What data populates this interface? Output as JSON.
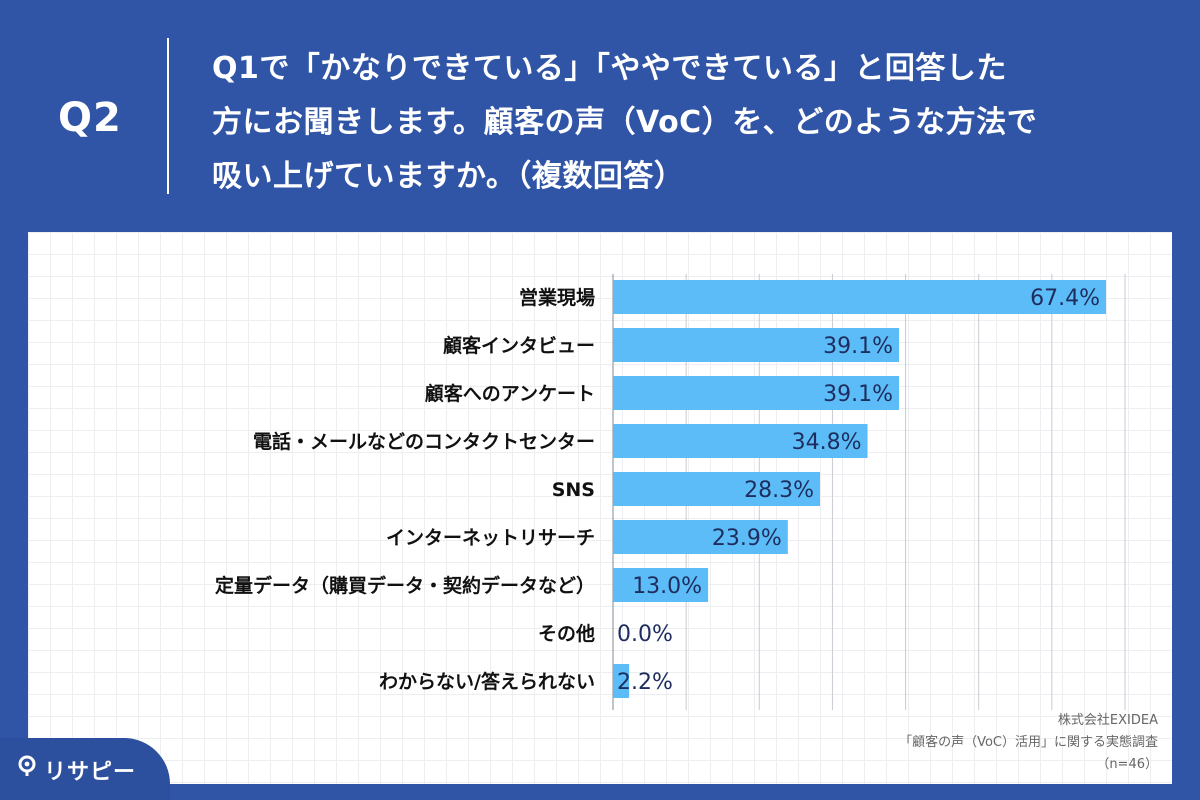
{
  "header": {
    "question_id": "Q2",
    "question_text": "Q1で「かなりできている」「ややできている」と回答した\n方にお聞きします。顧客の声（VoC）を、どのような方法で\n吸い上げていますか。（複数回答）"
  },
  "chart_data": {
    "type": "bar",
    "orientation": "horizontal",
    "categories": [
      "営業現場",
      "顧客インタビュー",
      "顧客へのアンケート",
      "電話・メールなどのコンタクトセンター",
      "SNS",
      "インターネットリサーチ",
      "定量データ（購買データ・契約データなど）",
      "その他",
      "わからない/答えられない"
    ],
    "values": [
      67.4,
      39.1,
      39.1,
      34.8,
      28.3,
      23.9,
      13.0,
      0.0,
      2.2
    ],
    "value_labels": [
      "67.4%",
      "39.1%",
      "39.1%",
      "34.8%",
      "28.3%",
      "23.9%",
      "13.0%",
      "0.0%",
      "2.2%"
    ],
    "xlim": [
      0,
      70
    ],
    "grid": true,
    "bar_color": "#5bbcf7"
  },
  "source": {
    "company": "株式会社EXIDEA",
    "survey": "「顧客の声（VoC）活用」に関する実態調査",
    "sample": "（n=46）"
  },
  "brand": {
    "name": "リサピー",
    "icon": "pin-icon"
  }
}
